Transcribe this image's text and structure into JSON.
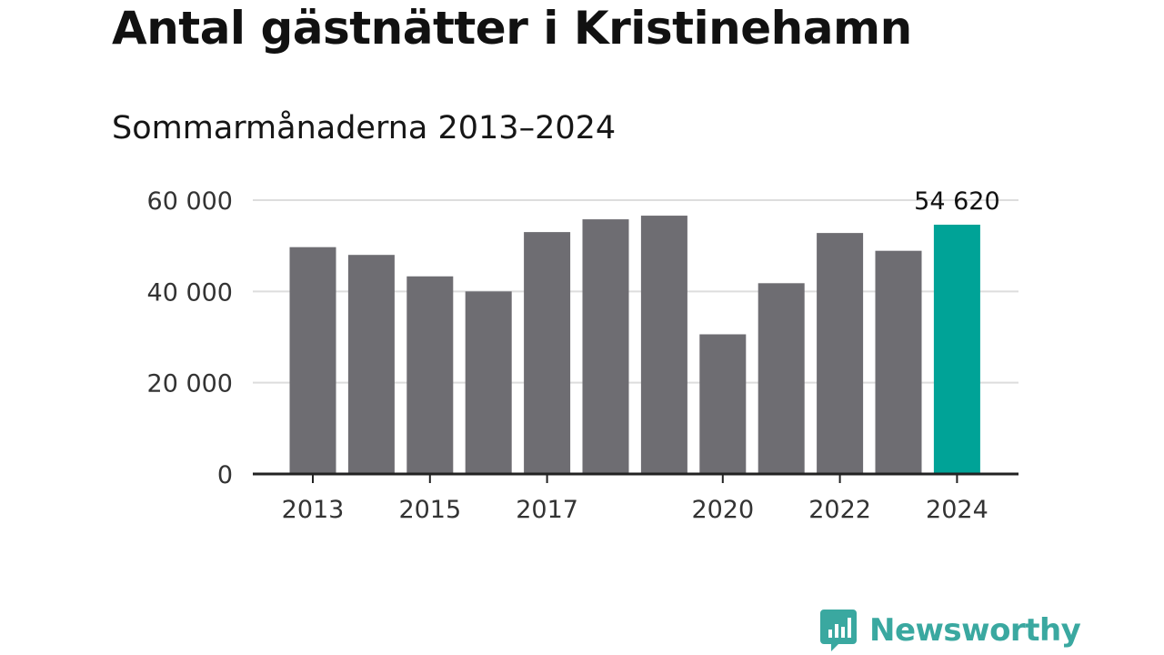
{
  "chart_data": {
    "type": "bar",
    "title": "Antal gästnätter i Kristinehamn",
    "subtitle": "Sommarmånaderna 2013–2024",
    "categories": [
      "2013",
      "2014",
      "2015",
      "2016",
      "2017",
      "2018",
      "2019",
      "2020",
      "2021",
      "2022",
      "2023",
      "2024"
    ],
    "values": [
      49700,
      48000,
      43300,
      40000,
      53000,
      55800,
      56600,
      30600,
      41800,
      52800,
      48900,
      54620
    ],
    "x_tick_labels": [
      "2013",
      "2015",
      "2017",
      "2020",
      "2022",
      "2024"
    ],
    "y_ticks": [
      0,
      20000,
      40000,
      60000
    ],
    "y_tick_labels": [
      "0",
      "20 000",
      "40 000",
      "60 000"
    ],
    "ylim": [
      0,
      60000
    ],
    "highlight": {
      "category": "2024",
      "label": "54 620"
    },
    "grid": true,
    "colors": {
      "bar": "#6e6d72",
      "highlight": "#00a397",
      "grid": "#dddddd",
      "axis": "#222222"
    }
  },
  "brand": {
    "name": "Newsworthy",
    "color": "#3aa8a0",
    "icon": "newsworthy-logo-icon"
  }
}
